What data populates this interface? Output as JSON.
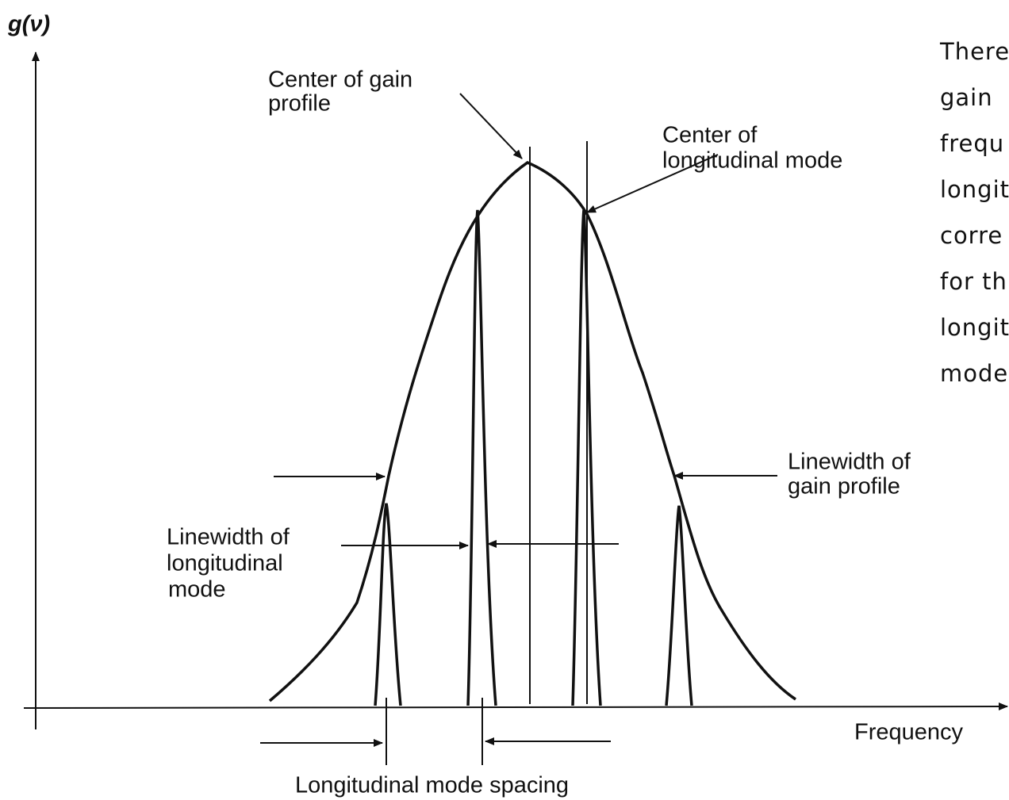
{
  "axis": {
    "y_label": "g(ν)",
    "x_label": "Frequency"
  },
  "annotations": {
    "center_gain": [
      "Center of gain",
      "profile"
    ],
    "center_mode": [
      "Center of",
      "longitudinal mode"
    ],
    "linewidth_gain": [
      "Linewidth of",
      "gain profile"
    ],
    "linewidth_mode": [
      "Linewidth of",
      "longitudinal",
      "mode"
    ],
    "mode_spacing": [
      "Longitudinal mode spacing"
    ]
  },
  "side_text": [
    "There",
    "gain",
    "frequ",
    "longit",
    "corre",
    "for th",
    "longit",
    "mode"
  ]
}
